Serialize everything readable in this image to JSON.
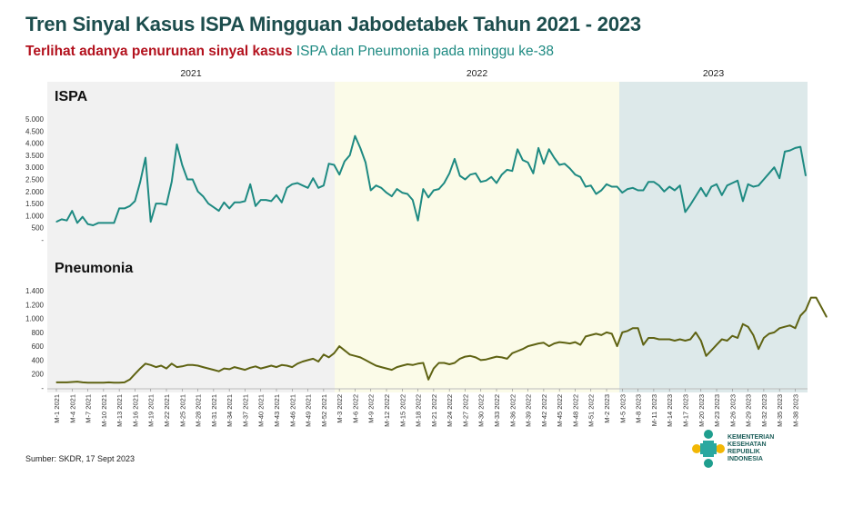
{
  "title": "Tren Sinyal Kasus ISPA Mingguan Jabodetabek Tahun 2021 - 2023",
  "subtitle": {
    "highlight": "Terlihat adanya penurunan sinyal kasus",
    "rest": " ISPA dan Pneumonia pada minggu ke-38"
  },
  "source": "Sumber: SKDR, 17 Sept 2023",
  "logo": {
    "lines": [
      "KEMENTERIAN",
      "KESEHATAN",
      "REPUBLIK",
      "INDONESIA"
    ],
    "icon": "kemenkes-logo-icon"
  },
  "colors": {
    "ispa": "#1e8a82",
    "pneumonia": "#5f6313",
    "bg_2021": "#f1f1f1",
    "bg_2022": "#fbfbe8",
    "bg_2023": "#dde9ea",
    "title": "#1c4d4d",
    "highlight": "#b3121e"
  },
  "chart_data": [
    {
      "type": "line",
      "title": "ISPA",
      "year_bands": [
        "2021",
        "2022",
        "2023"
      ],
      "ylim": [
        0,
        5000
      ],
      "yticks": [
        "5.000",
        "4.500",
        "4.000",
        "3.500",
        "3.000",
        "2.500",
        "2.000",
        "1.500",
        "1.000",
        "500",
        "-"
      ],
      "ytick_values": [
        5000,
        4500,
        4000,
        3500,
        3000,
        2500,
        2000,
        1500,
        1000,
        500,
        0
      ],
      "series": [
        {
          "values": [
            750,
            850,
            800,
            1200,
            700,
            950,
            650,
            600,
            700,
            700,
            700,
            700,
            1300,
            1300,
            1400,
            1600,
            2400,
            3400,
            750,
            1500,
            1500,
            1450,
            2400,
            3950,
            3100,
            2500,
            2500,
            2000,
            1800,
            1500,
            1350,
            1200,
            1550,
            1300,
            1550,
            1550,
            1600,
            2300,
            1400,
            1650,
            1650,
            1600,
            1850,
            1550,
            2150,
            2300,
            2350,
            2250,
            2150,
            2550,
            2150,
            2250,
            3150,
            3100,
            2700,
            3250,
            3500,
            4300,
            3800,
            3200,
            2050,
            2250,
            2150,
            1950,
            1800,
            2100,
            1950,
            1900,
            1650,
            800,
            2100,
            1750,
            2050,
            2100,
            2350,
            2750,
            3350,
            2650,
            2500,
            2700,
            2750,
            2400,
            2450,
            2600,
            2350,
            2700,
            2900,
            2850,
            3750,
            3300,
            3200,
            2750,
            3800,
            3150,
            3750,
            3400,
            3100,
            3150,
            2950,
            2700,
            2600,
            2200,
            2250,
            1900,
            2050,
            2300,
            2200,
            2200,
            1950,
            2100,
            2150,
            2050,
            2050,
            2400,
            2400,
            2250,
            2000,
            2200,
            2050,
            2250,
            1150,
            1450,
            1800,
            2150,
            1800,
            2200,
            2300,
            1850,
            2250,
            2350,
            2450,
            1600,
            2300,
            2200,
            2250,
            2500,
            2750,
            3000,
            2550,
            3650,
            3700,
            3800,
            3850,
            2650
          ]
        }
      ]
    },
    {
      "type": "line",
      "title": "Pneumonia",
      "ylim": [
        0,
        1400
      ],
      "yticks": [
        "1.400",
        "1.200",
        "1.000",
        "800",
        "600",
        "400",
        "200",
        "-"
      ],
      "ytick_values": [
        1400,
        1200,
        1000,
        800,
        600,
        400,
        200,
        0
      ],
      "series": [
        {
          "values": [
            80,
            80,
            80,
            85,
            90,
            80,
            75,
            75,
            75,
            75,
            80,
            75,
            75,
            80,
            120,
            200,
            280,
            350,
            330,
            300,
            320,
            280,
            350,
            300,
            310,
            330,
            330,
            320,
            300,
            280,
            260,
            240,
            280,
            270,
            300,
            280,
            260,
            290,
            310,
            280,
            300,
            320,
            300,
            330,
            320,
            300,
            350,
            380,
            400,
            420,
            380,
            480,
            440,
            500,
            600,
            540,
            480,
            460,
            440,
            400,
            360,
            320,
            300,
            280,
            260,
            300,
            320,
            340,
            330,
            350,
            360,
            120,
            280,
            360,
            360,
            340,
            360,
            420,
            450,
            460,
            440,
            400,
            410,
            430,
            450,
            440,
            420,
            500,
            530,
            560,
            600,
            620,
            640,
            650,
            600,
            640,
            660,
            650,
            640,
            660,
            620,
            740,
            760,
            780,
            760,
            800,
            780,
            600,
            800,
            820,
            860,
            860,
            620,
            720,
            720,
            700,
            700,
            700,
            680,
            700,
            680,
            700,
            800,
            680,
            460,
            540,
            620,
            700,
            680,
            750,
            720,
            920,
            880,
            760,
            560,
            720,
            780,
            800,
            860,
            880,
            900,
            860,
            1040,
            1120,
            1300,
            1300,
            1160,
            1020
          ]
        }
      ]
    }
  ],
  "xaxis": {
    "tick_labels": [
      "M-1 2021",
      "M-4 2021",
      "M-7 2021",
      "M-10 2021",
      "M-13 2021",
      "M-16 2021",
      "M-19 2021",
      "M-22 2021",
      "M-25 2021",
      "M-28 2021",
      "M-31 2021",
      "M-34 2021",
      "M-37 2021",
      "M-40 2021",
      "M-43 2021",
      "M-46 2021",
      "M-49 2021",
      "M-52 2021",
      "M-3 2022",
      "M-6 2022",
      "M-9 2022",
      "M-12 2022",
      "M-15 2022",
      "M-18 2022",
      "M-21 2022",
      "M-24 2022",
      "M-27 2022",
      "M-30 2022",
      "M-33 2022",
      "M-36 2022",
      "M-39 2022",
      "M-42 2022",
      "M-45 2022",
      "M-48 2022",
      "M-51 2022",
      "M-2 2023",
      "M-5 2023",
      "M-8 2023",
      "M-11 2023",
      "M-14 2023",
      "M-17 2023",
      "M-20 2023",
      "M-23 2023",
      "M-26 2023",
      "M-29 2023",
      "M-32 2023",
      "M-35 2023",
      "M-38 2023"
    ]
  }
}
